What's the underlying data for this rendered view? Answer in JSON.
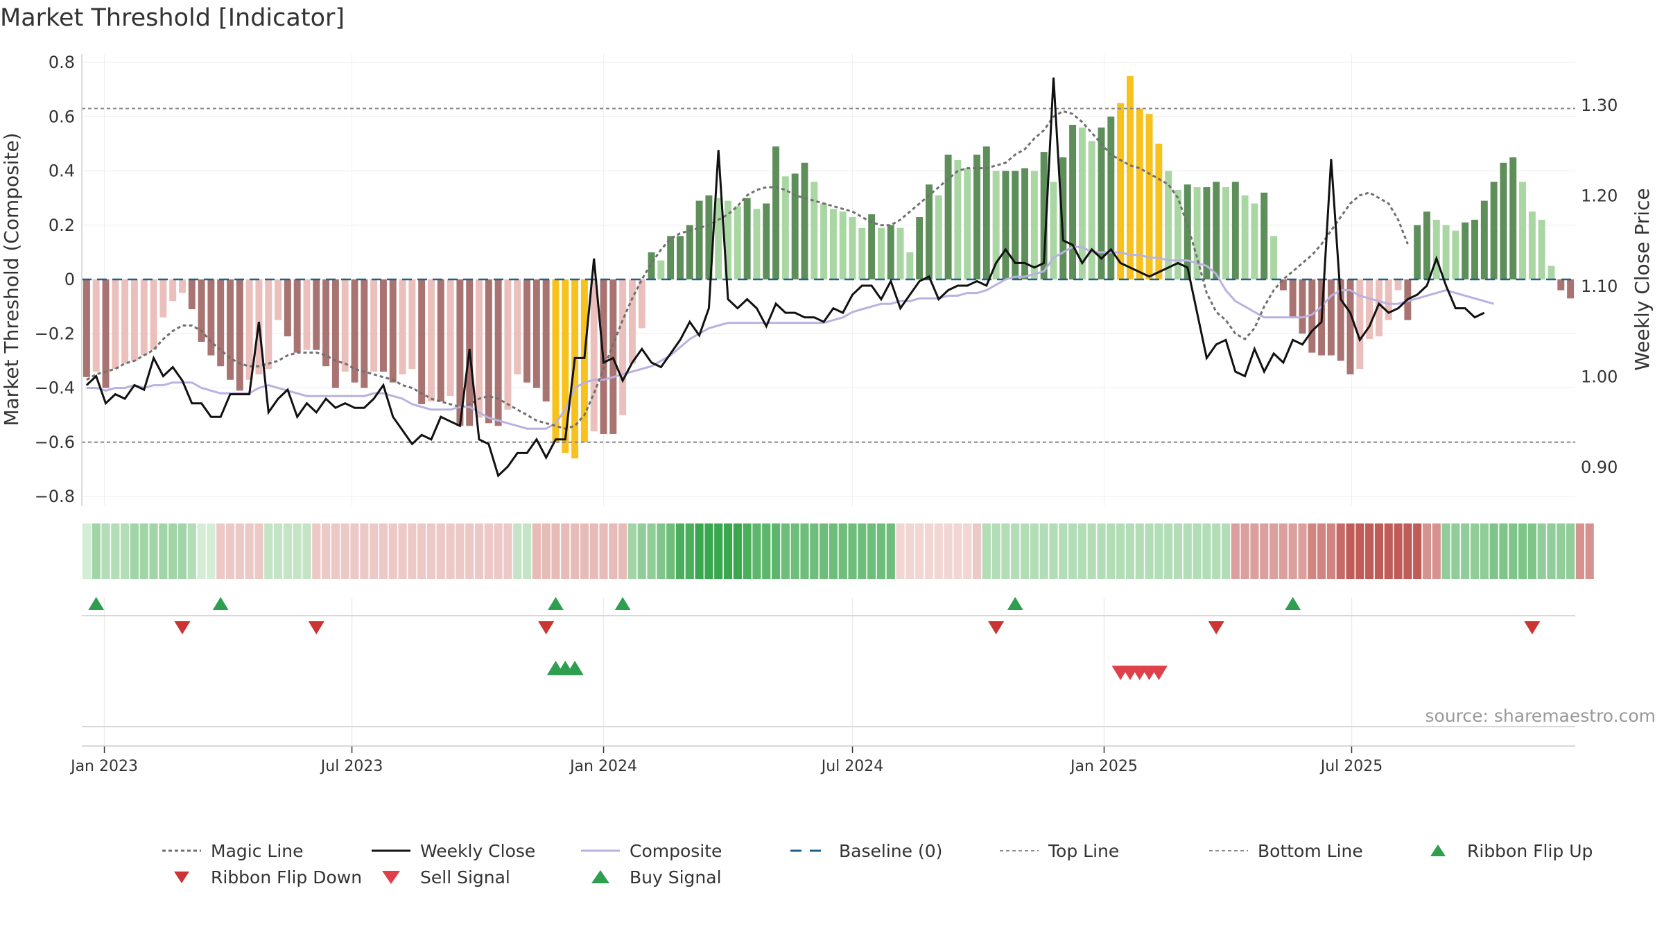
{
  "title": "Market Threshold [Indicator]",
  "source_text": "source: sharemaestro.com",
  "colors": {
    "pos_dark": "#5e8f5a",
    "pos_light": "#a9d6a3",
    "neg_dark": "#a87370",
    "neg_light": "#ebbfbb",
    "extreme": "#f7c11e",
    "weekly_close": "#111111",
    "composite": "#b9b2e0",
    "magic": "#707070",
    "baseline": "#1f5f8b",
    "threshold": "#888888",
    "buy": "#2e9e4f",
    "flip_down": "#cc3333",
    "sell": "#e0404a"
  },
  "chart_data": {
    "type": "bar",
    "title": "Market Threshold [Indicator]",
    "ylabel": "Market Threshold (Composite)",
    "y2label": "Weekly Close Price",
    "ylim": [
      -0.85,
      0.8
    ],
    "y2lim": [
      0.85,
      1.34
    ],
    "yticks": [
      "0.8",
      "0.6",
      "0.4",
      "0.2",
      "0",
      "−0.2",
      "−0.4",
      "−0.6",
      "−0.8"
    ],
    "y2ticks": [
      "1.30",
      "1.20",
      "1.10",
      "1.00",
      "0.90"
    ],
    "xtick_labels": [
      "Jan 2023",
      "Jul 2023",
      "Jan 2024",
      "Jul 2024",
      "Jan 2025",
      "Jul 2025"
    ],
    "x_start": "2022-12-19",
    "x_step": "1 week",
    "top_line": 0.63,
    "bottom_line": -0.6,
    "composite_bars": [
      -0.36,
      -0.34,
      -0.4,
      -0.33,
      -0.31,
      -0.3,
      -0.28,
      -0.26,
      -0.14,
      -0.08,
      -0.05,
      -0.11,
      -0.23,
      -0.28,
      -0.32,
      -0.37,
      -0.41,
      -0.37,
      -0.35,
      -0.33,
      -0.15,
      -0.21,
      -0.27,
      -0.26,
      -0.26,
      -0.32,
      -0.4,
      -0.34,
      -0.38,
      -0.4,
      -0.34,
      -0.34,
      -0.38,
      -0.35,
      -0.33,
      -0.46,
      -0.45,
      -0.45,
      -0.43,
      -0.54,
      -0.54,
      -0.51,
      -0.53,
      -0.54,
      -0.48,
      -0.35,
      -0.38,
      -0.4,
      -0.45,
      -0.6,
      -0.64,
      -0.66,
      -0.6,
      -0.56,
      -0.57,
      -0.57,
      -0.5,
      -0.31,
      -0.18,
      0.1,
      0.07,
      0.16,
      0.16,
      0.2,
      0.29,
      0.31,
      0.3,
      0.29,
      0.27,
      0.3,
      0.26,
      0.28,
      0.49,
      0.38,
      0.39,
      0.43,
      0.36,
      0.28,
      0.26,
      0.25,
      0.23,
      0.19,
      0.24,
      0.19,
      0.2,
      0.19,
      0.1,
      0.23,
      0.35,
      0.31,
      0.46,
      0.44,
      0.41,
      0.46,
      0.49,
      0.4,
      0.4,
      0.4,
      0.41,
      0.4,
      0.47,
      0.36,
      0.45,
      0.57,
      0.56,
      0.51,
      0.56,
      0.6,
      0.65,
      0.75,
      0.63,
      0.61,
      0.5,
      0.4,
      0.33,
      0.35,
      0.34,
      0.34,
      0.36,
      0.34,
      0.36,
      0.31,
      0.28,
      0.32,
      0.16,
      -0.04,
      -0.14,
      -0.2,
      -0.27,
      -0.28,
      -0.28,
      -0.3,
      -0.35,
      -0.33,
      -0.22,
      -0.21,
      -0.15,
      -0.04,
      -0.15,
      0.2,
      0.25,
      0.22,
      0.2,
      0.18,
      0.21,
      0.22,
      0.29,
      0.36,
      0.43,
      0.45,
      0.36,
      0.25,
      0.22,
      0.05,
      -0.04,
      -0.07
    ],
    "weekly_close": [
      0.99,
      1.0,
      0.97,
      0.98,
      0.975,
      0.99,
      0.985,
      1.02,
      1.0,
      1.01,
      0.995,
      0.97,
      0.97,
      0.955,
      0.955,
      0.98,
      0.98,
      0.98,
      1.06,
      0.96,
      0.975,
      0.985,
      0.955,
      0.97,
      0.96,
      0.975,
      0.965,
      0.97,
      0.965,
      0.965,
      0.975,
      0.99,
      0.955,
      0.94,
      0.925,
      0.935,
      0.93,
      0.955,
      0.95,
      0.945,
      1.03,
      0.93,
      0.925,
      0.89,
      0.9,
      0.915,
      0.915,
      0.93,
      0.91,
      0.93,
      0.93,
      1.02,
      1.02,
      1.13,
      1.015,
      1.02,
      0.995,
      1.015,
      1.03,
      1.015,
      1.01,
      1.025,
      1.04,
      1.06,
      1.045,
      1.075,
      1.25,
      1.085,
      1.075,
      1.085,
      1.075,
      1.055,
      1.08,
      1.07,
      1.07,
      1.065,
      1.065,
      1.06,
      1.075,
      1.07,
      1.09,
      1.1,
      1.1,
      1.085,
      1.105,
      1.075,
      1.09,
      1.105,
      1.11,
      1.085,
      1.095,
      1.1,
      1.1,
      1.105,
      1.1,
      1.125,
      1.14,
      1.125,
      1.125,
      1.12,
      1.125,
      1.33,
      1.15,
      1.145,
      1.125,
      1.14,
      1.13,
      1.14,
      1.125,
      1.12,
      1.115,
      1.11,
      1.115,
      1.12,
      1.125,
      1.12,
      1.07,
      1.02,
      1.035,
      1.04,
      1.005,
      1.0,
      1.03,
      1.005,
      1.025,
      1.015,
      1.04,
      1.035,
      1.05,
      1.06,
      1.24,
      1.085,
      1.07,
      1.04,
      1.055,
      1.08,
      1.07,
      1.075,
      1.085,
      1.09,
      1.1,
      1.13,
      1.1,
      1.075,
      1.075,
      1.065,
      1.07
    ],
    "composite_line": [
      -0.4,
      -0.4,
      -0.41,
      -0.4,
      -0.4,
      -0.39,
      -0.4,
      -0.39,
      -0.39,
      -0.38,
      -0.38,
      -0.38,
      -0.4,
      -0.41,
      -0.42,
      -0.42,
      -0.42,
      -0.42,
      -0.4,
      -0.39,
      -0.4,
      -0.41,
      -0.42,
      -0.43,
      -0.43,
      -0.43,
      -0.43,
      -0.43,
      -0.43,
      -0.43,
      -0.42,
      -0.42,
      -0.43,
      -0.44,
      -0.46,
      -0.47,
      -0.48,
      -0.48,
      -0.48,
      -0.47,
      -0.47,
      -0.49,
      -0.51,
      -0.52,
      -0.53,
      -0.54,
      -0.55,
      -0.55,
      -0.55,
      -0.53,
      -0.48,
      -0.4,
      -0.38,
      -0.37,
      -0.37,
      -0.36,
      -0.35,
      -0.34,
      -0.33,
      -0.32,
      -0.3,
      -0.28,
      -0.25,
      -0.22,
      -0.2,
      -0.18,
      -0.17,
      -0.16,
      -0.16,
      -0.16,
      -0.16,
      -0.16,
      -0.16,
      -0.16,
      -0.16,
      -0.16,
      -0.16,
      -0.16,
      -0.15,
      -0.14,
      -0.12,
      -0.11,
      -0.1,
      -0.09,
      -0.09,
      -0.08,
      -0.08,
      -0.07,
      -0.07,
      -0.07,
      -0.06,
      -0.06,
      -0.05,
      -0.05,
      -0.04,
      -0.02,
      0.0,
      0.01,
      0.01,
      0.02,
      0.03,
      0.08,
      0.1,
      0.12,
      0.12,
      0.1,
      0.1,
      0.1,
      0.1,
      0.09,
      0.09,
      0.08,
      0.08,
      0.07,
      0.07,
      0.07,
      0.06,
      0.05,
      0.02,
      -0.04,
      -0.08,
      -0.1,
      -0.12,
      -0.14,
      -0.14,
      -0.14,
      -0.14,
      -0.14,
      -0.13,
      -0.1,
      -0.06,
      -0.04,
      -0.04,
      -0.06,
      -0.07,
      -0.08,
      -0.09,
      -0.09,
      -0.08,
      -0.07,
      -0.06,
      -0.05,
      -0.04,
      -0.05,
      -0.06,
      -0.07,
      -0.08,
      -0.09
    ],
    "magic_line": [
      -0.37,
      -0.35,
      -0.34,
      -0.33,
      -0.31,
      -0.3,
      -0.28,
      -0.26,
      -0.22,
      -0.19,
      -0.17,
      -0.17,
      -0.19,
      -0.23,
      -0.26,
      -0.29,
      -0.31,
      -0.32,
      -0.32,
      -0.31,
      -0.3,
      -0.28,
      -0.27,
      -0.27,
      -0.27,
      -0.28,
      -0.3,
      -0.31,
      -0.33,
      -0.34,
      -0.35,
      -0.36,
      -0.37,
      -0.39,
      -0.4,
      -0.42,
      -0.44,
      -0.45,
      -0.46,
      -0.47,
      -0.46,
      -0.44,
      -0.43,
      -0.44,
      -0.46,
      -0.48,
      -0.5,
      -0.52,
      -0.53,
      -0.54,
      -0.55,
      -0.54,
      -0.5,
      -0.42,
      -0.33,
      -0.24,
      -0.15,
      -0.07,
      0.0,
      0.06,
      0.11,
      0.15,
      0.17,
      0.18,
      0.19,
      0.2,
      0.22,
      0.24,
      0.27,
      0.31,
      0.33,
      0.34,
      0.34,
      0.33,
      0.31,
      0.3,
      0.29,
      0.28,
      0.27,
      0.26,
      0.25,
      0.23,
      0.21,
      0.2,
      0.2,
      0.22,
      0.25,
      0.28,
      0.31,
      0.34,
      0.37,
      0.4,
      0.41,
      0.41,
      0.41,
      0.42,
      0.43,
      0.46,
      0.48,
      0.52,
      0.55,
      0.6,
      0.62,
      0.61,
      0.58,
      0.54,
      0.5,
      0.46,
      0.44,
      0.42,
      0.41,
      0.39,
      0.37,
      0.35,
      0.3,
      0.2,
      0.08,
      -0.05,
      -0.12,
      -0.15,
      -0.2,
      -0.22,
      -0.18,
      -0.1,
      -0.04,
      0.0,
      0.03,
      0.06,
      0.09,
      0.13,
      0.18,
      0.23,
      0.28,
      0.31,
      0.32,
      0.3,
      0.28,
      0.22,
      0.13
    ],
    "ribbon": [
      0.05,
      0.2,
      0.15,
      0.15,
      0.15,
      0.2,
      0.2,
      0.2,
      0.2,
      0.2,
      0.2,
      0.15,
      0.05,
      0.05,
      -0.1,
      -0.1,
      -0.1,
      -0.1,
      -0.1,
      0.1,
      0.1,
      0.1,
      0.1,
      0.1,
      -0.1,
      -0.1,
      -0.1,
      -0.1,
      -0.1,
      -0.1,
      -0.1,
      -0.1,
      -0.1,
      -0.1,
      -0.1,
      -0.1,
      -0.1,
      -0.1,
      -0.1,
      -0.1,
      -0.1,
      -0.1,
      -0.1,
      -0.1,
      -0.1,
      0.1,
      0.1,
      -0.15,
      -0.15,
      -0.15,
      -0.15,
      -0.15,
      -0.15,
      -0.15,
      -0.15,
      -0.15,
      -0.15,
      0.2,
      0.25,
      0.25,
      0.3,
      0.35,
      0.45,
      0.45,
      0.5,
      0.5,
      0.5,
      0.5,
      0.5,
      0.45,
      0.4,
      0.4,
      0.4,
      0.35,
      0.35,
      0.35,
      0.35,
      0.35,
      0.35,
      0.35,
      0.35,
      0.35,
      0.35,
      0.35,
      0.35,
      -0.05,
      -0.05,
      -0.05,
      -0.05,
      -0.05,
      -0.05,
      -0.05,
      -0.05,
      -0.1,
      0.15,
      0.15,
      0.15,
      0.15,
      0.15,
      0.15,
      0.15,
      0.15,
      0.15,
      0.15,
      0.15,
      0.15,
      0.15,
      0.15,
      0.15,
      0.15,
      0.15,
      0.15,
      0.15,
      0.15,
      0.15,
      0.15,
      0.15,
      0.15,
      0.15,
      0.15,
      -0.25,
      -0.25,
      -0.25,
      -0.25,
      -0.25,
      -0.25,
      -0.25,
      -0.25,
      -0.35,
      -0.35,
      -0.35,
      -0.45,
      -0.5,
      -0.5,
      -0.5,
      -0.5,
      -0.5,
      -0.5,
      -0.5,
      -0.5,
      -0.3,
      -0.3,
      0.25,
      0.25,
      0.25,
      0.25,
      0.25,
      0.3,
      0.3,
      0.3,
      0.3,
      0.3,
      0.25,
      0.25,
      0.25,
      0.25,
      -0.3,
      -0.3
    ],
    "extreme_indices": [
      49,
      50,
      51,
      52,
      108,
      109,
      110,
      111,
      112
    ],
    "ribbon_flip_up": [
      1,
      14,
      49,
      56,
      97,
      126
    ],
    "ribbon_flip_down": [
      10,
      24,
      48,
      95,
      118,
      151
    ],
    "buy_signal": [
      49,
      50,
      51
    ],
    "sell_signal": [
      108,
      109,
      110,
      111,
      112
    ],
    "legend": [
      {
        "label": "Magic Line",
        "symbol": "dotted-gray"
      },
      {
        "label": "Weekly Close",
        "symbol": "solid-black"
      },
      {
        "label": "Composite",
        "symbol": "solid-lavender"
      },
      {
        "label": "Baseline (0)",
        "symbol": "dashed-blue"
      },
      {
        "label": "Top Line",
        "symbol": "dotted-light"
      },
      {
        "label": "Bottom Line",
        "symbol": "dotted-light"
      },
      {
        "label": "Ribbon Flip Up",
        "symbol": "triangle-up-green"
      },
      {
        "label": "Ribbon Flip Down",
        "symbol": "triangle-down-red"
      },
      {
        "label": "Sell Signal",
        "symbol": "triangle-down-bright-red"
      },
      {
        "label": "Buy Signal",
        "symbol": "triangle-up-green-large"
      }
    ]
  }
}
